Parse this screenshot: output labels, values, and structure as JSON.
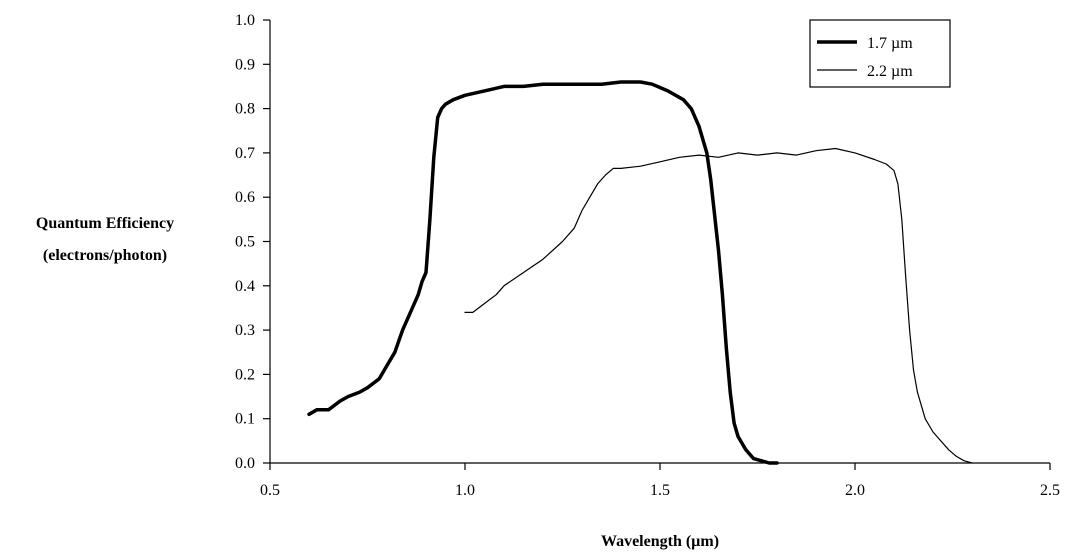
{
  "chart_data": {
    "type": "line",
    "title": "",
    "xlabel": "Wavelength (µm)",
    "ylabel": [
      "Quantum Efficiency",
      "(electrons/photon)"
    ],
    "xlim": [
      0.5,
      2.5
    ],
    "ylim": [
      0.0,
      1.0
    ],
    "x_ticks": [
      {
        "value": 0.5,
        "label": "0.5"
      },
      {
        "value": 1.0,
        "label": "1.0"
      },
      {
        "value": 1.5,
        "label": "1.5"
      },
      {
        "value": 2.0,
        "label": "2.0"
      },
      {
        "value": 2.5,
        "label": "2.5"
      }
    ],
    "y_ticks": [
      {
        "value": 0.0,
        "label": "0.0"
      },
      {
        "value": 0.1,
        "label": "0.1"
      },
      {
        "value": 0.2,
        "label": "0.2"
      },
      {
        "value": 0.3,
        "label": "0.3"
      },
      {
        "value": 0.4,
        "label": "0.4"
      },
      {
        "value": 0.5,
        "label": "0.5"
      },
      {
        "value": 0.6,
        "label": "0.6"
      },
      {
        "value": 0.7,
        "label": "0.7"
      },
      {
        "value": 0.8,
        "label": "0.8"
      },
      {
        "value": 0.9,
        "label": "0.9"
      },
      {
        "value": 1.0,
        "label": "1.0"
      }
    ],
    "grid": false,
    "legend_position": "top-right",
    "series": [
      {
        "name": "1.7 µm",
        "color": "#000000",
        "style": "thick",
        "x": [
          0.6,
          0.62,
          0.65,
          0.68,
          0.7,
          0.73,
          0.75,
          0.78,
          0.8,
          0.82,
          0.84,
          0.86,
          0.88,
          0.89,
          0.9,
          0.91,
          0.92,
          0.93,
          0.94,
          0.95,
          0.97,
          1.0,
          1.05,
          1.1,
          1.15,
          1.2,
          1.25,
          1.3,
          1.35,
          1.4,
          1.45,
          1.48,
          1.52,
          1.56,
          1.58,
          1.6,
          1.61,
          1.62,
          1.63,
          1.64,
          1.65,
          1.66,
          1.67,
          1.68,
          1.69,
          1.7,
          1.72,
          1.74,
          1.76,
          1.78,
          1.8
        ],
        "y": [
          0.11,
          0.12,
          0.12,
          0.14,
          0.15,
          0.16,
          0.17,
          0.19,
          0.22,
          0.25,
          0.3,
          0.34,
          0.38,
          0.41,
          0.43,
          0.55,
          0.69,
          0.78,
          0.8,
          0.81,
          0.82,
          0.83,
          0.84,
          0.85,
          0.85,
          0.855,
          0.855,
          0.855,
          0.855,
          0.86,
          0.86,
          0.855,
          0.84,
          0.82,
          0.8,
          0.76,
          0.73,
          0.7,
          0.64,
          0.56,
          0.48,
          0.38,
          0.26,
          0.16,
          0.09,
          0.06,
          0.03,
          0.01,
          0.005,
          0.0,
          0.0
        ]
      },
      {
        "name": "2.2 µm",
        "color": "#000000",
        "style": "thin",
        "x": [
          1.0,
          1.02,
          1.05,
          1.08,
          1.1,
          1.15,
          1.2,
          1.25,
          1.28,
          1.3,
          1.32,
          1.34,
          1.36,
          1.38,
          1.4,
          1.45,
          1.5,
          1.55,
          1.6,
          1.65,
          1.7,
          1.75,
          1.8,
          1.85,
          1.9,
          1.95,
          2.0,
          2.05,
          2.08,
          2.1,
          2.11,
          2.12,
          2.13,
          2.14,
          2.15,
          2.16,
          2.18,
          2.2,
          2.22,
          2.24,
          2.26,
          2.28,
          2.3
        ],
        "y": [
          0.34,
          0.34,
          0.36,
          0.38,
          0.4,
          0.43,
          0.46,
          0.5,
          0.53,
          0.57,
          0.6,
          0.63,
          0.65,
          0.665,
          0.665,
          0.67,
          0.68,
          0.69,
          0.695,
          0.69,
          0.7,
          0.695,
          0.7,
          0.695,
          0.705,
          0.71,
          0.7,
          0.685,
          0.675,
          0.66,
          0.63,
          0.55,
          0.42,
          0.3,
          0.21,
          0.16,
          0.1,
          0.07,
          0.05,
          0.03,
          0.015,
          0.005,
          0.0
        ]
      }
    ]
  }
}
